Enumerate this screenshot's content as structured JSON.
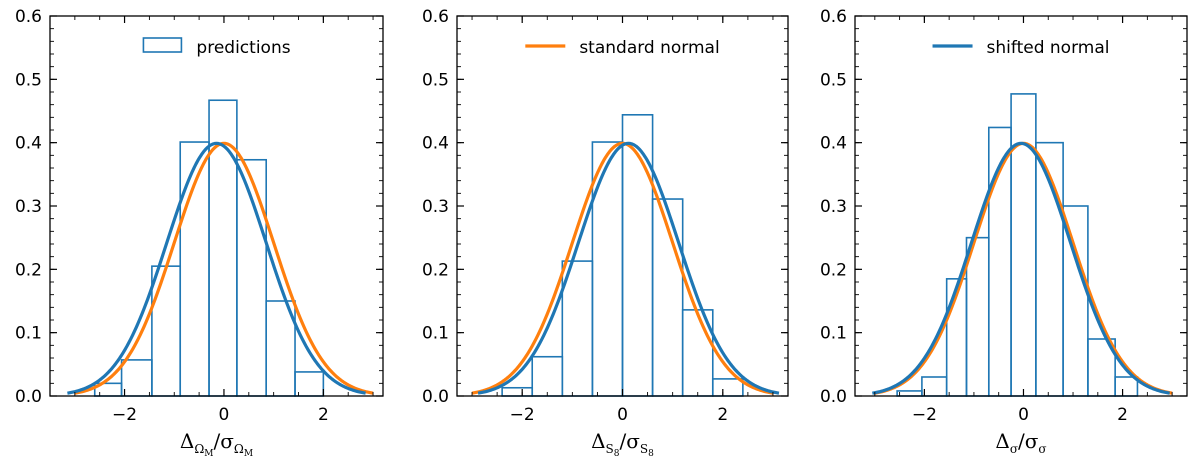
{
  "chart_data": [
    {
      "type": "histogram+line",
      "xlabel": {
        "numerator": "Δ",
        "numerator_sub": "Ω",
        "numerator_subsub": "M",
        "sep": "/",
        "denominator": "σ",
        "denominator_sub": "Ω",
        "denominator_subsub": "M"
      },
      "xlim": [
        -3.5,
        3.2
      ],
      "ylim": [
        0,
        0.6
      ],
      "xticks": [
        -2,
        0,
        2
      ],
      "xtick_labels": [
        "−2",
        "0",
        "2"
      ],
      "yticks": [
        0.0,
        0.1,
        0.2,
        0.3,
        0.4,
        0.5,
        0.6
      ],
      "ytick_labels": [
        "0.0",
        "0.1",
        "0.2",
        "0.3",
        "0.4",
        "0.5",
        "0.6"
      ],
      "legend": {
        "label": "predictions",
        "kind": "patch",
        "color": "#1f77b4",
        "position": "upper center"
      },
      "histogram": {
        "name": "predictions",
        "color": "#1f77b4",
        "edges": [
          -3.15,
          -2.6,
          -2.06,
          -1.45,
          -0.88,
          -0.3,
          0.26,
          0.85,
          1.43,
          2.0,
          2.6
        ],
        "values": [
          0.0,
          0.02,
          0.057,
          0.205,
          0.401,
          0.467,
          0.373,
          0.15,
          0.038,
          0.0
        ]
      },
      "series": [
        {
          "name": "standard normal",
          "color": "#ff7f0e",
          "mean": 0.0,
          "std": 1.0,
          "x_range": [
            -3.0,
            3.0
          ]
        },
        {
          "name": "shifted normal",
          "color": "#1f77b4",
          "mean": -0.15,
          "std": 1.0,
          "x_range": [
            -3.15,
            2.85
          ]
        }
      ]
    },
    {
      "type": "histogram+line",
      "xlabel": {
        "numerator": "Δ",
        "numerator_sub": "S",
        "numerator_subsub": "8",
        "sep": "/",
        "denominator": "σ",
        "denominator_sub": "S",
        "denominator_subsub": "8"
      },
      "xlim": [
        -3.3,
        3.3
      ],
      "ylim": [
        0,
        0.6
      ],
      "xticks": [
        -2,
        0,
        2
      ],
      "xtick_labels": [
        "−2",
        "0",
        "2"
      ],
      "yticks": [
        0.0,
        0.1,
        0.2,
        0.3,
        0.4,
        0.5,
        0.6
      ],
      "ytick_labels": [
        "0.0",
        "0.1",
        "0.2",
        "0.3",
        "0.4",
        "0.5",
        "0.6"
      ],
      "legend": {
        "label": "standard normal",
        "kind": "line",
        "color": "#ff7f0e",
        "position": "upper center"
      },
      "histogram": {
        "name": "predictions",
        "color": "#1f77b4",
        "edges": [
          -3.0,
          -2.4,
          -1.8,
          -1.2,
          -0.6,
          0.0,
          0.6,
          1.2,
          1.8,
          2.4,
          3.0
        ],
        "values": [
          0.0,
          0.013,
          0.062,
          0.213,
          0.401,
          0.444,
          0.311,
          0.136,
          0.027,
          0.0
        ]
      },
      "series": [
        {
          "name": "standard normal",
          "color": "#ff7f0e",
          "mean": 0.0,
          "std": 1.0,
          "x_range": [
            -3.0,
            3.0
          ]
        },
        {
          "name": "shifted normal",
          "color": "#1f77b4",
          "mean": 0.12,
          "std": 1.0,
          "x_range": [
            -2.88,
            3.12
          ]
        }
      ]
    },
    {
      "type": "histogram+line",
      "xlabel": {
        "numerator": "Δ",
        "numerator_sub": "σ",
        "numerator_subsub": "",
        "sep": "/",
        "denominator": "σ",
        "denominator_sub": "σ",
        "denominator_subsub": ""
      },
      "xlim": [
        -3.4,
        3.3
      ],
      "ylim": [
        0,
        0.6
      ],
      "xticks": [
        -2,
        0,
        2
      ],
      "xtick_labels": [
        "−2",
        "0",
        "2"
      ],
      "yticks": [
        0.0,
        0.1,
        0.2,
        0.3,
        0.4,
        0.5,
        0.6
      ],
      "ytick_labels": [
        "0.0",
        "0.1",
        "0.2",
        "0.3",
        "0.4",
        "0.5",
        "0.6"
      ],
      "legend": {
        "label": "shifted normal",
        "kind": "line",
        "color": "#1f77b4",
        "position": "upper center"
      },
      "histogram": {
        "name": "predictions",
        "color": "#1f77b4",
        "edges": [
          -3.0,
          -2.55,
          -2.05,
          -1.55,
          -1.15,
          -0.7,
          -0.25,
          0.25,
          0.8,
          1.3,
          1.85,
          2.3,
          2.8
        ],
        "values": [
          0.0,
          0.008,
          0.03,
          0.185,
          0.25,
          0.424,
          0.477,
          0.4,
          0.3,
          0.09,
          0.03,
          0.0
        ]
      },
      "series": [
        {
          "name": "standard normal",
          "color": "#ff7f0e",
          "mean": 0.0,
          "std": 1.0,
          "x_range": [
            -3.0,
            3.0
          ]
        },
        {
          "name": "shifted normal",
          "color": "#1f77b4",
          "mean": -0.05,
          "std": 1.0,
          "x_range": [
            -3.05,
            2.95
          ]
        }
      ]
    }
  ]
}
